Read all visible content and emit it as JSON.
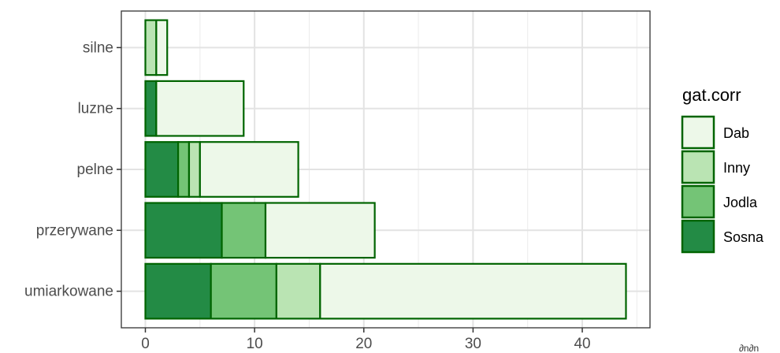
{
  "chart_data": {
    "type": "bar",
    "orientation": "horizontal",
    "stacked": true,
    "categories": [
      "silne",
      "luzne",
      "pelne",
      "przerywane",
      "umiarkowane"
    ],
    "series": [
      {
        "name": "Sosna",
        "values": [
          0,
          1,
          3,
          7,
          6
        ]
      },
      {
        "name": "Jodla",
        "values": [
          0,
          0,
          1,
          4,
          6
        ]
      },
      {
        "name": "Inny",
        "values": [
          1,
          0,
          1,
          0,
          4
        ]
      },
      {
        "name": "Dab",
        "values": [
          1,
          8,
          9,
          10,
          28
        ]
      }
    ],
    "xticks": [
      0,
      10,
      20,
      30,
      40
    ],
    "xlim": [
      -2.2,
      46.2
    ],
    "grid": true,
    "legend": {
      "title": "gat.corr",
      "position": "right",
      "entries": [
        "Dab",
        "Inny",
        "Jodla",
        "Sosna"
      ]
    },
    "colors": {
      "Sosna": "#238b45",
      "Jodla": "#74c476",
      "Inny": "#bae4b3",
      "Dab": "#edf8e9",
      "outline": "#006400"
    }
  },
  "corner_text": "∂n∂n"
}
